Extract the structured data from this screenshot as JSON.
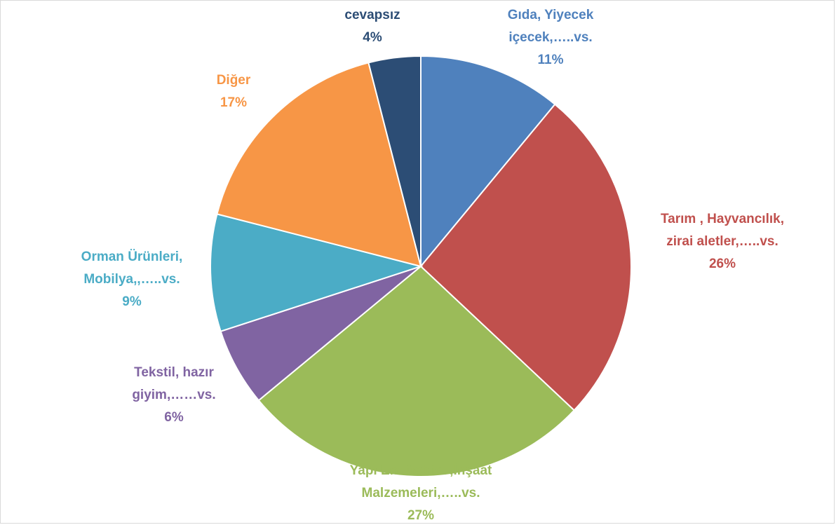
{
  "chart_data": {
    "type": "pie",
    "title": "",
    "legend": "none",
    "slices": [
      {
        "name": "Gıda, Yiyecek içecek,…..vs.",
        "label_lines": [
          "Gıda, Yiyecek",
          "içecek,…..vs."
        ],
        "value_label": "11%",
        "value": 11,
        "color": "#4F81BD"
      },
      {
        "name": "Tarım , Hayvancılık, zirai aletler,…..vs.",
        "label_lines": [
          "Tarım , Hayvancılık,",
          "zirai aletler,…..vs."
        ],
        "value_label": "26%",
        "value": 26,
        "color": "#C0504D"
      },
      {
        "name": "Yapı Endüstrisi ,İnşaat Malzemeleri,…..vs.",
        "label_lines": [
          "Yapı Endüstrisi ,İnşaat",
          "Malzemeleri,…..vs."
        ],
        "value_label": "27%",
        "value": 27,
        "color": "#9BBB59"
      },
      {
        "name": "Tekstil, hazır giyim,……vs.",
        "label_lines": [
          "Tekstil, hazır",
          "giyim,……vs."
        ],
        "value_label": "6%",
        "value": 6,
        "color": "#8064A2"
      },
      {
        "name": "Orman Ürünleri, Mobilya,,…..vs.",
        "label_lines": [
          "Orman Ürünleri,",
          "Mobilya,,…..vs."
        ],
        "value_label": "9%",
        "value": 9,
        "color": "#4BACC6"
      },
      {
        "name": "Diğer",
        "label_lines": [
          "Diğer"
        ],
        "value_label": "17%",
        "value": 17,
        "color": "#F79646"
      },
      {
        "name": "cevapsız",
        "label_lines": [
          "cevapsız"
        ],
        "value_label": "4%",
        "value": 4,
        "color": "#2C4D75"
      }
    ],
    "start_angle_deg": 0,
    "direction": "clockwise"
  }
}
